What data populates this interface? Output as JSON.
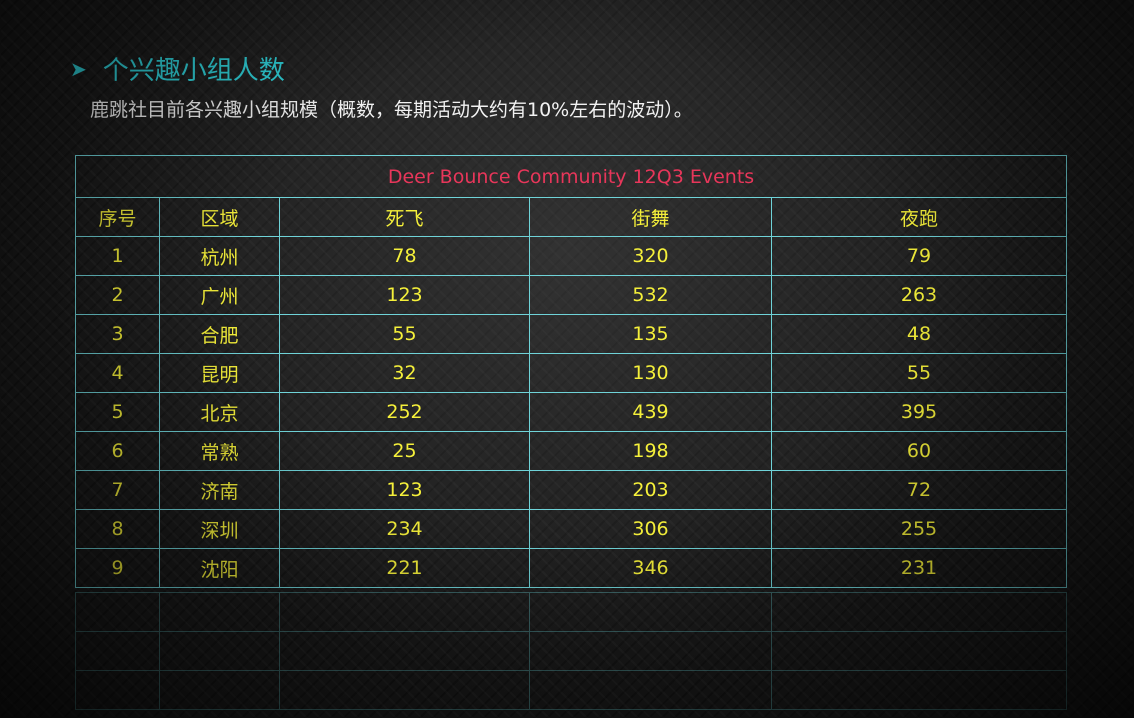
{
  "heading": {
    "icon": "arrow-bullet-icon",
    "text": "个兴趣小组人数"
  },
  "subtitle": "鹿跳社目前各兴趣小组规模（概数，每期活动大约有10%左右的波动）。",
  "table": {
    "title": "Deer Bounce Community 12Q3 Events",
    "headers": [
      "序号",
      "区域",
      "死飞",
      "街舞",
      "夜跑"
    ],
    "rows": [
      [
        "1",
        "杭州",
        "78",
        "320",
        "79"
      ],
      [
        "2",
        "广州",
        "123",
        "532",
        "263"
      ],
      [
        "3",
        "合肥",
        "55",
        "135",
        "48"
      ],
      [
        "4",
        "昆明",
        "32",
        "130",
        "55"
      ],
      [
        "5",
        "北京",
        "252",
        "439",
        "395"
      ],
      [
        "6",
        "常熟",
        "25",
        "198",
        "60"
      ],
      [
        "7",
        "济南",
        "123",
        "203",
        "72"
      ],
      [
        "8",
        "深圳",
        "234",
        "306",
        "255"
      ],
      [
        "9",
        "沈阳",
        "221",
        "346",
        "231"
      ]
    ]
  },
  "colors": {
    "heading": "#2fd0d8",
    "title": "#e8365a",
    "cell_text": "#f5f03a",
    "border": "#6fd3d8"
  }
}
